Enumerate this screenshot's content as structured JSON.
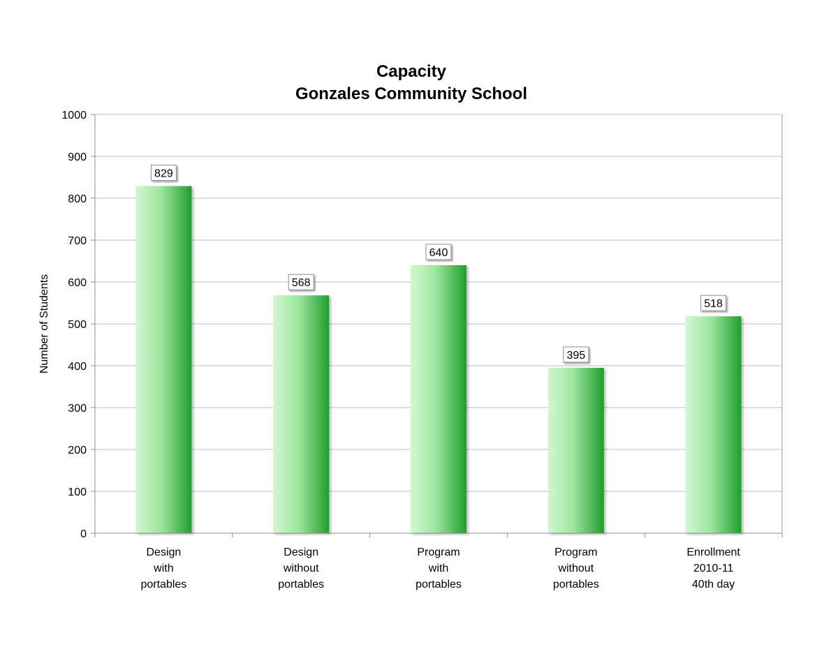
{
  "chart_data": {
    "type": "bar",
    "title_lines": [
      "Capacity",
      "Gonzales Community School"
    ],
    "ylabel": "Number of Students",
    "xlabel": "",
    "ylim": [
      0,
      1000
    ],
    "yticks": [
      0,
      100,
      200,
      300,
      400,
      500,
      600,
      700,
      800,
      900,
      1000
    ],
    "grid": true,
    "legend": "none",
    "categories": [
      [
        "Design",
        "with",
        "portables"
      ],
      [
        "Design",
        "without",
        "portables"
      ],
      [
        "Program",
        "with",
        "portables"
      ],
      [
        "Program",
        "without",
        "portables"
      ],
      [
        "Enrollment",
        "2010-11",
        "40th day"
      ]
    ],
    "values": [
      829,
      568,
      640,
      395,
      518
    ],
    "data_labels": [
      "829",
      "568",
      "640",
      "395",
      "518"
    ],
    "colors": {
      "bar_light": "#d2f7d2",
      "bar_mid": "#9ee69e",
      "bar_dark": "#1e9e2e",
      "grid": "#bdbdbd",
      "axis": "#8c8c8c",
      "frame": "#9a9a9a"
    }
  }
}
